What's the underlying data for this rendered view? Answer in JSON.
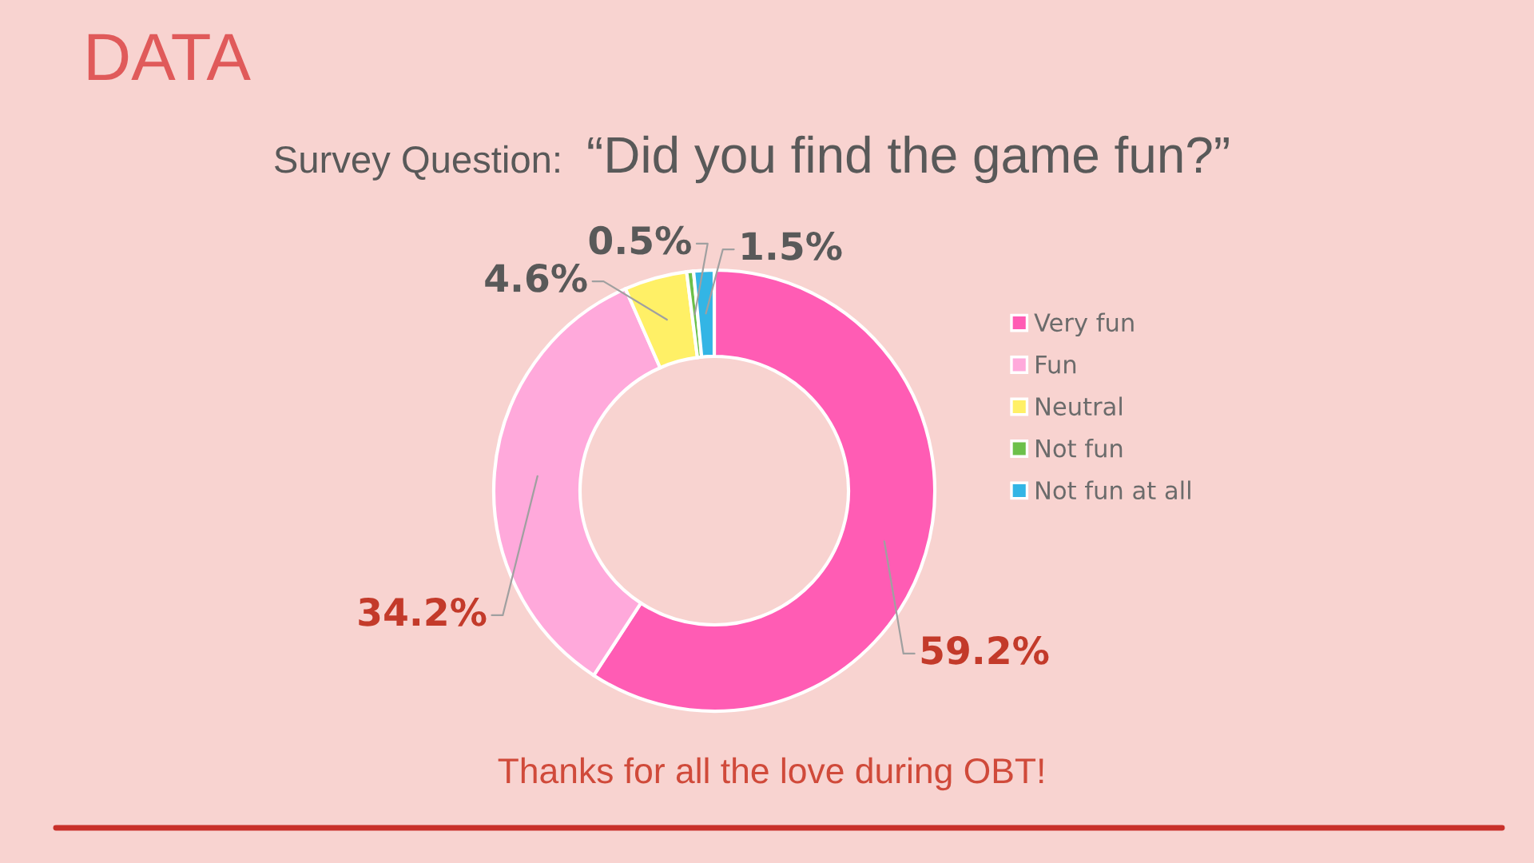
{
  "chart_data": {
    "type": "donut",
    "title": "“Did you find the game fun?”",
    "annotations": [
      "DATA",
      "Survey Question:",
      "Thanks for all the love during OBT!"
    ],
    "categories": [
      "Very fun",
      "Fun",
      "Neutral",
      "Not fun",
      "Not fun at all"
    ],
    "values": [
      59.2,
      34.2,
      4.6,
      0.5,
      1.5
    ],
    "colors": [
      "#ff5cb4",
      "#ffa9db",
      "#fff066",
      "#6cc04a",
      "#33b5e5"
    ],
    "value_labels": [
      "59.2%",
      "34.2%",
      "4.6%",
      "0.5%",
      "1.5%"
    ],
    "legend": "right"
  }
}
